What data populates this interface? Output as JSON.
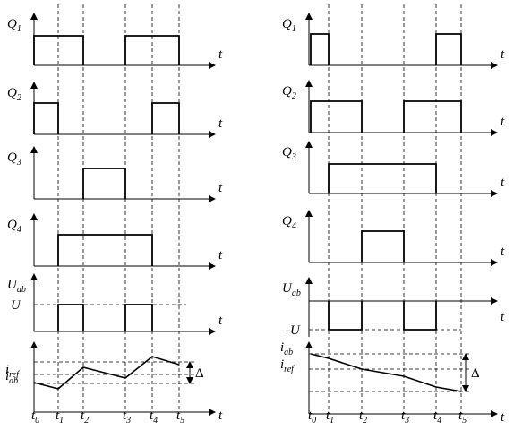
{
  "left": {
    "panels": [
      {
        "symbol": "Q",
        "subscript": "1"
      },
      {
        "symbol": "Q",
        "subscript": "2"
      },
      {
        "symbol": "Q",
        "subscript": "3"
      },
      {
        "symbol": "Q",
        "subscript": "4"
      },
      {
        "symbol": "U",
        "subscript": "ab"
      }
    ],
    "axis_label": "t",
    "level": "U",
    "current": {
      "symbol": "i",
      "subscript": "ab"
    },
    "reference": {
      "symbol": "i",
      "subscript": "ref"
    },
    "delta": "Δ",
    "times": [
      {
        "symbol": "t",
        "subscript": "0"
      },
      {
        "symbol": "t",
        "subscript": "1"
      },
      {
        "symbol": "t",
        "subscript": "2"
      },
      {
        "symbol": "t",
        "subscript": "3"
      },
      {
        "symbol": "t",
        "subscript": "4"
      },
      {
        "symbol": "t",
        "subscript": "5"
      }
    ]
  },
  "right": {
    "panels": [
      {
        "symbol": "Q",
        "subscript": "1"
      },
      {
        "symbol": "Q",
        "subscript": "2"
      },
      {
        "symbol": "Q",
        "subscript": "3"
      },
      {
        "symbol": "Q",
        "subscript": "4"
      },
      {
        "symbol": "U",
        "subscript": "ab"
      }
    ],
    "axis_label": "t",
    "level": "-U",
    "current": {
      "symbol": "i",
      "subscript": "ab"
    },
    "reference": {
      "symbol": "i",
      "subscript": "ref"
    },
    "delta": "Δ",
    "times": [
      {
        "symbol": "t",
        "subscript": "0"
      },
      {
        "symbol": "t",
        "subscript": "1"
      },
      {
        "symbol": "t",
        "subscript": "2"
      },
      {
        "symbol": "t",
        "subscript": "3"
      },
      {
        "symbol": "t",
        "subscript": "4"
      },
      {
        "symbol": "t",
        "subscript": "5"
      }
    ]
  }
}
